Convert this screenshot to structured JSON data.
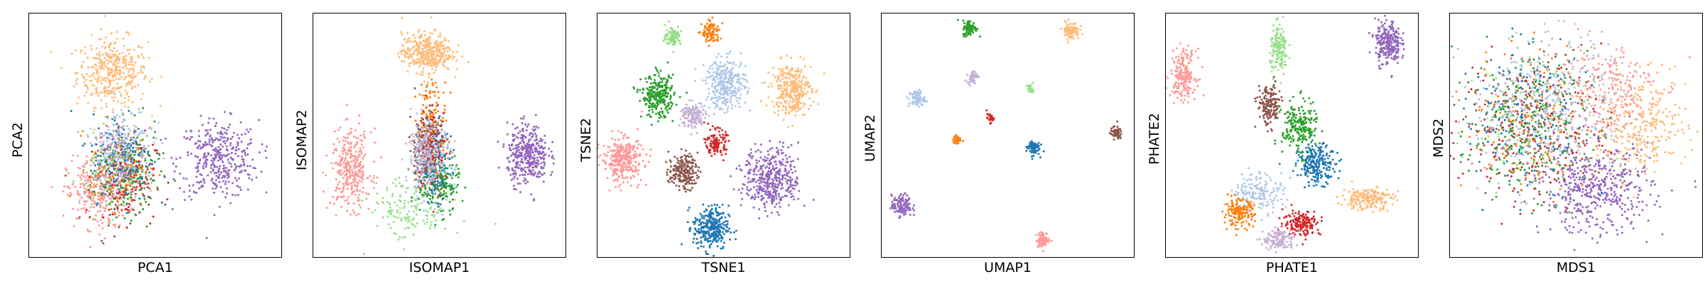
{
  "chart_data": [
    {
      "type": "scatter",
      "xlabel": "PCA1",
      "ylabel": "PCA2",
      "xlim": [
        0,
        100
      ],
      "ylim": [
        0,
        100
      ],
      "clusters": [
        {
          "color": "#ffbb78",
          "cx": 33,
          "cy": 76,
          "sx": 7,
          "sy": 7,
          "n": 380
        },
        {
          "color": "#9467bd",
          "cx": 75,
          "cy": 40,
          "sx": 8,
          "sy": 8,
          "n": 380
        },
        {
          "color": "#ff9896",
          "cx": 27,
          "cy": 26,
          "sx": 6,
          "sy": 7,
          "n": 260
        },
        {
          "color": "#8c564b",
          "cx": 37,
          "cy": 32,
          "sx": 6,
          "sy": 9,
          "n": 120
        },
        {
          "color": "#98df8a",
          "cx": 32,
          "cy": 33,
          "sx": 6,
          "sy": 8,
          "n": 120
        },
        {
          "color": "#2ca02c",
          "cx": 40,
          "cy": 35,
          "sx": 6,
          "sy": 9,
          "n": 160
        },
        {
          "color": "#d62728",
          "cx": 38,
          "cy": 33,
          "sx": 6,
          "sy": 9,
          "n": 120
        },
        {
          "color": "#ff7f0e",
          "cx": 36,
          "cy": 37,
          "sx": 6,
          "sy": 8,
          "n": 120
        },
        {
          "color": "#1f77b4",
          "cx": 37,
          "cy": 41,
          "sx": 6,
          "sy": 9,
          "n": 160
        },
        {
          "color": "#aec7e8",
          "cx": 37,
          "cy": 47,
          "sx": 6,
          "sy": 8,
          "n": 160
        },
        {
          "color": "#c5b0d5",
          "cx": 34,
          "cy": 39,
          "sx": 6,
          "sy": 8,
          "n": 100
        }
      ]
    },
    {
      "type": "scatter",
      "xlabel": "ISOMAP1",
      "ylabel": "ISOMAP2",
      "xlim": [
        0,
        100
      ],
      "ylim": [
        0,
        100
      ],
      "clusters": [
        {
          "color": "#ffbb78",
          "cx": 45,
          "cy": 84,
          "sx": 5,
          "sy": 4,
          "n": 380
        },
        {
          "color": "#9467bd",
          "cx": 85,
          "cy": 42,
          "sx": 4,
          "sy": 6,
          "n": 380
        },
        {
          "color": "#ff9896",
          "cx": 15,
          "cy": 36,
          "sx": 4,
          "sy": 8,
          "n": 320
        },
        {
          "color": "#98df8a",
          "cx": 38,
          "cy": 20,
          "sx": 8,
          "sy": 7,
          "n": 160
        },
        {
          "color": "#2ca02c",
          "cx": 50,
          "cy": 30,
          "sx": 4,
          "sy": 6,
          "n": 200
        },
        {
          "color": "#1f77b4",
          "cx": 48,
          "cy": 40,
          "sx": 3,
          "sy": 8,
          "n": 180
        },
        {
          "color": "#ff7f0e",
          "cx": 47,
          "cy": 55,
          "sx": 3,
          "sy": 9,
          "n": 140
        },
        {
          "color": "#d62728",
          "cx": 47,
          "cy": 45,
          "sx": 3,
          "sy": 9,
          "n": 130
        },
        {
          "color": "#8c564b",
          "cx": 44,
          "cy": 45,
          "sx": 3,
          "sy": 8,
          "n": 130
        },
        {
          "color": "#aec7e8",
          "cx": 46,
          "cy": 38,
          "sx": 5,
          "sy": 8,
          "n": 150
        },
        {
          "color": "#c5b0d5",
          "cx": 44,
          "cy": 42,
          "sx": 3,
          "sy": 6,
          "n": 120
        }
      ]
    },
    {
      "type": "scatter",
      "xlabel": "TSNE1",
      "ylabel": "TSNE2",
      "xlim": [
        0,
        100
      ],
      "ylim": [
        0,
        100
      ],
      "clusters": [
        {
          "color": "#98df8a",
          "cx": 30,
          "cy": 91,
          "sx": 1.5,
          "sy": 2,
          "n": 100
        },
        {
          "color": "#ff7f0e",
          "cx": 45,
          "cy": 92,
          "sx": 1.8,
          "sy": 2.3,
          "n": 100
        },
        {
          "color": "#2ca02c",
          "cx": 24,
          "cy": 66,
          "sx": 3.2,
          "sy": 4.2,
          "n": 280
        },
        {
          "color": "#aec7e8",
          "cx": 51,
          "cy": 71,
          "sx": 4,
          "sy": 5.2,
          "n": 320
        },
        {
          "color": "#ffbb78",
          "cx": 77,
          "cy": 69,
          "sx": 3.9,
          "sy": 5.3,
          "n": 320
        },
        {
          "color": "#c5b0d5",
          "cx": 38,
          "cy": 58,
          "sx": 2.4,
          "sy": 2.8,
          "n": 140
        },
        {
          "color": "#d62728",
          "cx": 47,
          "cy": 47,
          "sx": 2,
          "sy": 2.6,
          "n": 120
        },
        {
          "color": "#ff9896",
          "cx": 10,
          "cy": 40,
          "sx": 4,
          "sy": 4.6,
          "n": 320
        },
        {
          "color": "#8c564b",
          "cx": 34,
          "cy": 35,
          "sx": 2.8,
          "sy": 3.6,
          "n": 200
        },
        {
          "color": "#9467bd",
          "cx": 69,
          "cy": 32,
          "sx": 5.5,
          "sy": 6.3,
          "n": 420
        },
        {
          "color": "#1f77b4",
          "cx": 45,
          "cy": 12,
          "sx": 3.5,
          "sy": 4.5,
          "n": 300
        }
      ]
    },
    {
      "type": "scatter",
      "xlabel": "UMAP1",
      "ylabel": "UMAP2",
      "xlim": [
        0,
        100
      ],
      "ylim": [
        0,
        100
      ],
      "clusters": [
        {
          "color": "#2ca02c",
          "cx": 35,
          "cy": 94,
          "sx": 1.4,
          "sy": 1.6,
          "n": 90
        },
        {
          "color": "#ffbb78",
          "cx": 75,
          "cy": 93,
          "sx": 1.7,
          "sy": 1.8,
          "n": 90
        },
        {
          "color": "#c5b0d5",
          "cx": 36,
          "cy": 74,
          "sx": 1,
          "sy": 1.2,
          "n": 50
        },
        {
          "color": "#98df8a",
          "cx": 59,
          "cy": 69,
          "sx": 0.6,
          "sy": 0.9,
          "n": 30
        },
        {
          "color": "#aec7e8",
          "cx": 14,
          "cy": 65,
          "sx": 1.6,
          "sy": 1.8,
          "n": 80
        },
        {
          "color": "#d62728",
          "cx": 43,
          "cy": 57,
          "sx": 0.7,
          "sy": 0.9,
          "n": 30
        },
        {
          "color": "#ff7f0e",
          "cx": 30,
          "cy": 48,
          "sx": 0.8,
          "sy": 0.9,
          "n": 35
        },
        {
          "color": "#1f77b4",
          "cx": 60,
          "cy": 45,
          "sx": 1.3,
          "sy": 1.6,
          "n": 80
        },
        {
          "color": "#8c564b",
          "cx": 93,
          "cy": 51,
          "sx": 1.1,
          "sy": 1.3,
          "n": 60
        },
        {
          "color": "#9467bd",
          "cx": 8,
          "cy": 21,
          "sx": 2,
          "sy": 2.2,
          "n": 130
        },
        {
          "color": "#ff9896",
          "cx": 64,
          "cy": 7,
          "sx": 1.3,
          "sy": 1.5,
          "n": 80
        }
      ]
    },
    {
      "type": "scatter",
      "xlabel": "PHATE1",
      "ylabel": "PHATE2",
      "xlim": [
        0,
        100
      ],
      "ylim": [
        0,
        100
      ],
      "clusters": [
        {
          "color": "#9467bd",
          "cx": 88,
          "cy": 88,
          "sx": 2.5,
          "sy": 4.5,
          "n": 260
        },
        {
          "color": "#98df8a",
          "cx": 45,
          "cy": 85,
          "sx": 1.8,
          "sy": 5,
          "n": 160
        },
        {
          "color": "#ff9896",
          "cx": 7,
          "cy": 75,
          "sx": 2.5,
          "sy": 5,
          "n": 200
        },
        {
          "color": "#8c564b",
          "cx": 41,
          "cy": 62,
          "sx": 2.3,
          "sy": 4.3,
          "n": 170
        },
        {
          "color": "#2ca02c",
          "cx": 53,
          "cy": 53,
          "sx": 3.5,
          "sy": 5.5,
          "n": 220
        },
        {
          "color": "#1f77b4",
          "cx": 60,
          "cy": 38,
          "sx": 3.7,
          "sy": 4,
          "n": 220
        },
        {
          "color": "#aec7e8",
          "cx": 37,
          "cy": 27,
          "sx": 5,
          "sy": 4,
          "n": 160
        },
        {
          "color": "#ffbb78",
          "cx": 80,
          "cy": 24,
          "sx": 5,
          "sy": 2.3,
          "n": 200
        },
        {
          "color": "#ff7f0e",
          "cx": 29,
          "cy": 18,
          "sx": 3,
          "sy": 2.7,
          "n": 170
        },
        {
          "color": "#d62728",
          "cx": 54,
          "cy": 14,
          "sx": 3.7,
          "sy": 2.6,
          "n": 170
        },
        {
          "color": "#c5b0d5",
          "cx": 45,
          "cy": 7,
          "sx": 3.2,
          "sy": 2.2,
          "n": 130
        }
      ]
    },
    {
      "type": "scatter",
      "xlabel": "MDS1",
      "ylabel": "MDS2",
      "xlim": [
        0,
        100
      ],
      "ylim": [
        0,
        100
      ],
      "clusters": [
        {
          "color": "#9467bd",
          "cx": 58,
          "cy": 28,
          "sx": 11,
          "sy": 9,
          "n": 480
        },
        {
          "color": "#ffbb78",
          "cx": 76,
          "cy": 54,
          "sx": 9,
          "sy": 10,
          "n": 300
        },
        {
          "color": "#ff9896",
          "cx": 62,
          "cy": 70,
          "sx": 10,
          "sy": 10,
          "n": 220
        },
        {
          "color": "#aec7e8",
          "cx": 40,
          "cy": 64,
          "sx": 12,
          "sy": 14,
          "n": 220
        },
        {
          "color": "#1f77b4",
          "cx": 30,
          "cy": 58,
          "sx": 13,
          "sy": 14,
          "n": 200
        },
        {
          "color": "#2ca02c",
          "cx": 28,
          "cy": 52,
          "sx": 13,
          "sy": 15,
          "n": 200
        },
        {
          "color": "#d62728",
          "cx": 33,
          "cy": 52,
          "sx": 14,
          "sy": 15,
          "n": 160
        },
        {
          "color": "#ff7f0e",
          "cx": 35,
          "cy": 55,
          "sx": 14,
          "sy": 15,
          "n": 160
        },
        {
          "color": "#8c564b",
          "cx": 32,
          "cy": 54,
          "sx": 14,
          "sy": 15,
          "n": 140
        },
        {
          "color": "#98df8a",
          "cx": 30,
          "cy": 56,
          "sx": 13,
          "sy": 15,
          "n": 140
        },
        {
          "color": "#c5b0d5",
          "cx": 35,
          "cy": 58,
          "sx": 13,
          "sy": 15,
          "n": 140
        }
      ]
    }
  ]
}
